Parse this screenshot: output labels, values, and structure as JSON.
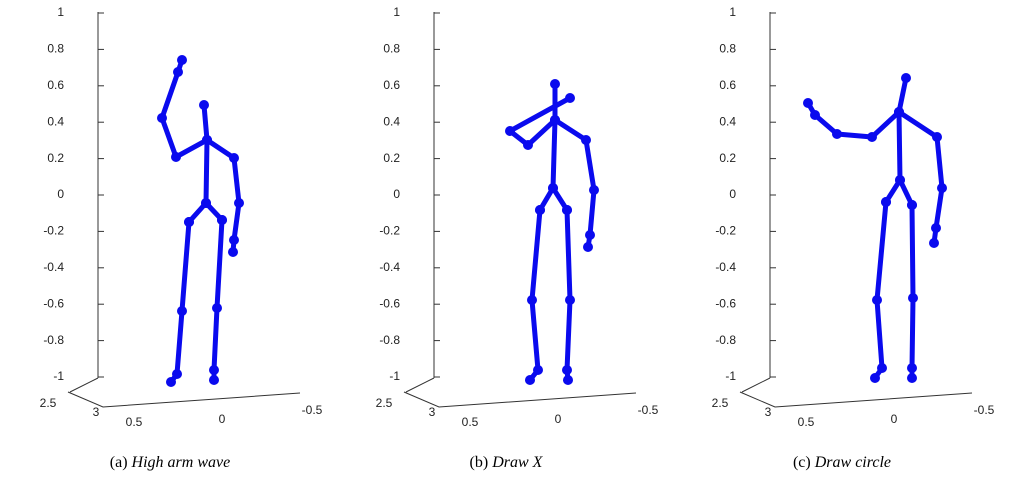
{
  "panels": [
    {
      "label": "(a)",
      "title": "High arm wave"
    },
    {
      "label": "(b)",
      "title": "Draw X"
    },
    {
      "label": "(c)",
      "title": "Draw circle"
    }
  ],
  "vertical_ticks": [
    "1",
    "0.8",
    "0.6",
    "0.4",
    "0.2",
    "0",
    "-0.2",
    "-0.4",
    "-0.6",
    "-0.8",
    "-1"
  ],
  "depth_ticks": [
    "2.5",
    "3"
  ],
  "horizontal_ticks": [
    "0.5",
    "0",
    "-0.5"
  ]
}
